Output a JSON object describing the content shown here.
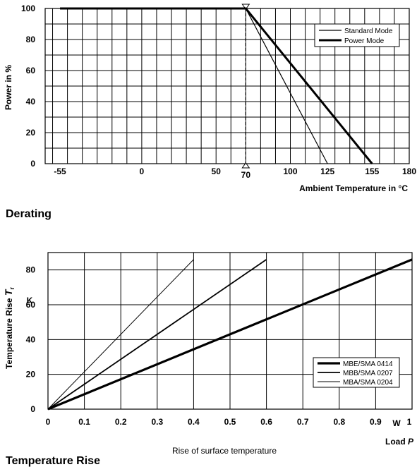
{
  "chart_data": [
    {
      "type": "line",
      "title": "Derating",
      "ylabel": "Power in %",
      "xlabel": "Ambient Temperature in °C",
      "xlim": [
        -65,
        180
      ],
      "ylim": [
        0,
        100
      ],
      "x_ticks": [
        "-55",
        "0",
        "50",
        "70",
        "100",
        "125",
        "155",
        "180"
      ],
      "y_ticks": [
        "0",
        "20",
        "40",
        "60",
        "80",
        "100"
      ],
      "x_tick_values": [
        -55,
        0,
        50,
        70,
        100,
        125,
        155,
        180
      ],
      "y_tick_values": [
        0,
        20,
        40,
        60,
        80,
        100
      ],
      "grid": true,
      "legend_position": "top-right",
      "series": [
        {
          "name": "Standard Mode",
          "points": [
            [
              -55,
              100
            ],
            [
              70,
              100
            ],
            [
              125,
              0
            ]
          ]
        },
        {
          "name": "Power Mode",
          "points": [
            [
              -55,
              100
            ],
            [
              70,
              100
            ],
            [
              155,
              0
            ]
          ]
        }
      ],
      "marker_x": 70
    },
    {
      "type": "line",
      "title": "Temperature Rise",
      "caption": "Rise of surface temperature",
      "ylabel_main": "Temperature Rise ",
      "ylabel_symbol": "T",
      "ylabel_subscript": "r",
      "yunit": "K",
      "xlabel_main": "Load ",
      "xlabel_symbol": "P",
      "xunit": "W",
      "xlim": [
        0,
        1
      ],
      "ylim": [
        0,
        90
      ],
      "x_ticks": [
        "0",
        "0.1",
        "0.2",
        "0.3",
        "0.4",
        "0.5",
        "0.6",
        "0.7",
        "0.8",
        "0.9",
        "1"
      ],
      "y_ticks": [
        "0",
        "20",
        "40",
        "60",
        "80"
      ],
      "x_tick_values": [
        0,
        0.1,
        0.2,
        0.3,
        0.4,
        0.5,
        0.6,
        0.7,
        0.8,
        0.9,
        1.0
      ],
      "y_tick_values": [
        0,
        20,
        40,
        60,
        80
      ],
      "grid": true,
      "legend_position": "bottom-right",
      "series": [
        {
          "name": "MBE/SMA 0414",
          "points": [
            [
              0,
              0
            ],
            [
              1.0,
              86
            ]
          ]
        },
        {
          "name": "MBB/SMA 0207",
          "points": [
            [
              0,
              0
            ],
            [
              0.6,
              86
            ]
          ]
        },
        {
          "name": "MBA/SMA 0204",
          "points": [
            [
              0,
              0
            ],
            [
              0.4,
              86
            ]
          ]
        }
      ]
    }
  ]
}
